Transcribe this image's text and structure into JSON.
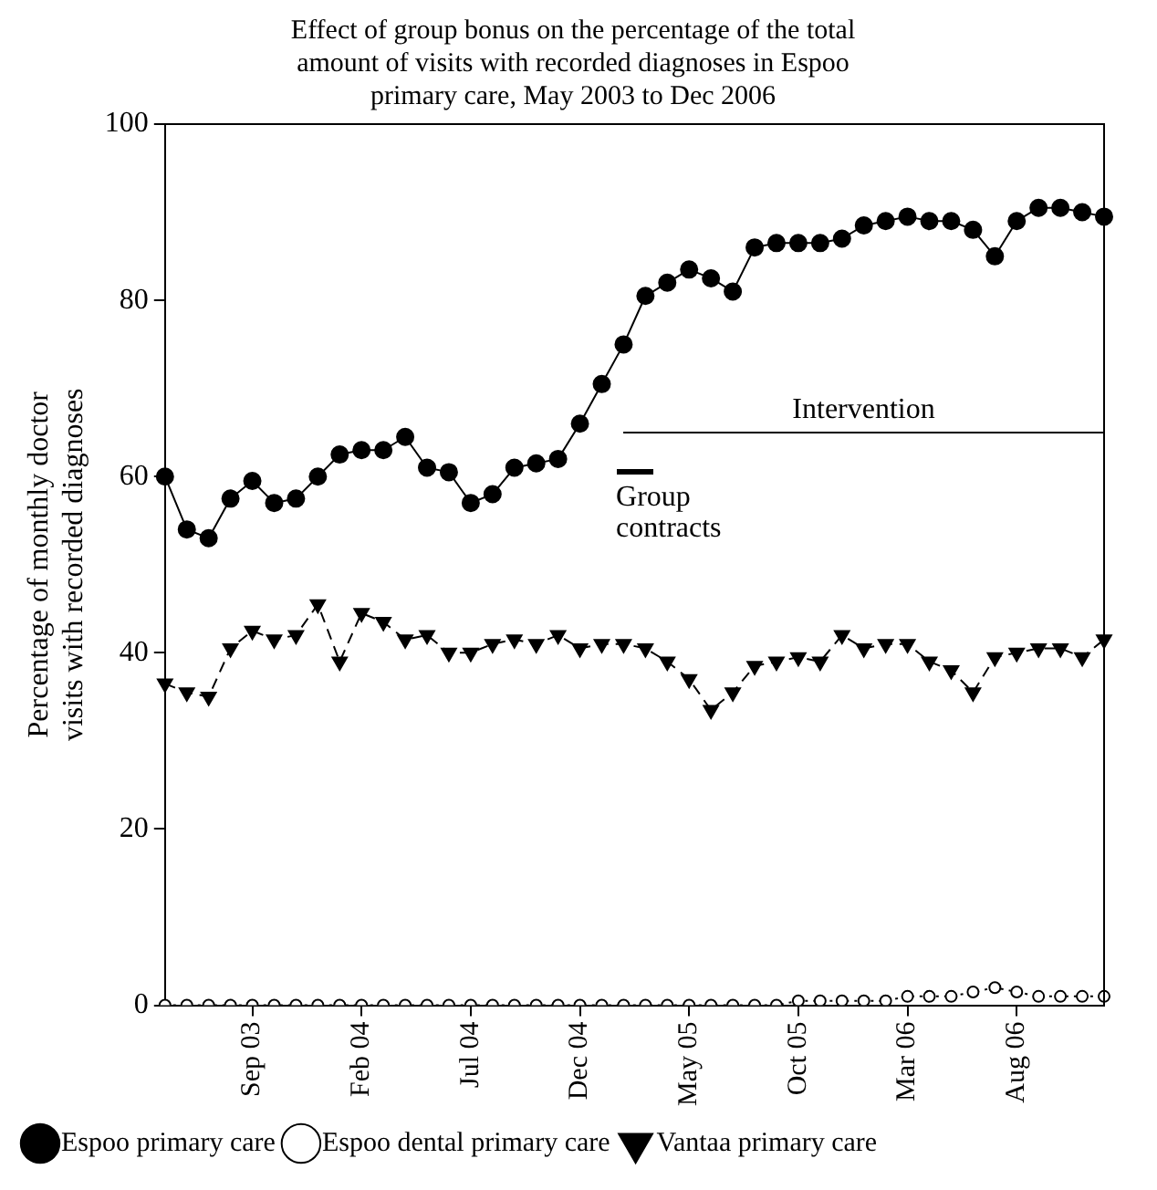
{
  "chart_data": {
    "type": "line",
    "title": "Effect of group bonus on the percentage of the total amount of visits with recorded diagnoses in Espoo primary care, May 2003 to Dec 2006",
    "ylabel": "Percentage of monthly doctor visits with recorded diagnoses",
    "categories": [
      null,
      null,
      null,
      null,
      "Sep 03",
      null,
      null,
      null,
      null,
      "Feb 04",
      null,
      null,
      null,
      null,
      "Jul 04",
      null,
      null,
      null,
      null,
      "Dec 04",
      null,
      null,
      null,
      null,
      "May 05",
      null,
      null,
      null,
      null,
      "Oct 05",
      null,
      null,
      null,
      null,
      "Mar 06",
      null,
      null,
      null,
      null,
      "Aug 06",
      null,
      null,
      null,
      null
    ],
    "ylim": [
      0,
      100
    ],
    "yticks": [
      0,
      20,
      40,
      60,
      80,
      100
    ],
    "grid": false,
    "legend": "bottom",
    "series": [
      {
        "name": "Espoo primary care",
        "color": "#000000",
        "marker": "circle",
        "line_style": "solid",
        "values": [
          60,
          54,
          53,
          57.5,
          59.5,
          57,
          57.5,
          60,
          62.5,
          63,
          63,
          64.5,
          61,
          60.5,
          57,
          58,
          61,
          61.5,
          62,
          66,
          70.5,
          75,
          80.5,
          82,
          83.5,
          82.5,
          81,
          86,
          86.5,
          86.5,
          86.5,
          87,
          88.5,
          89,
          89.5,
          89,
          89,
          88,
          85,
          89,
          90.5,
          90.5,
          90,
          89.5
        ]
      },
      {
        "name": "Espoo dental primary care",
        "color": "#000000",
        "marker": "circle",
        "line_style": "dotted",
        "values": [
          0,
          0,
          0,
          0,
          0,
          0,
          0,
          0,
          0,
          0,
          0,
          0,
          0,
          0,
          0,
          0,
          0,
          0,
          0,
          0,
          0,
          0,
          0,
          0,
          0,
          0,
          0,
          0,
          0,
          0.5,
          0.5,
          0.5,
          0.5,
          0.5,
          1,
          1,
          1,
          1.5,
          2,
          1.5,
          1,
          1,
          1,
          1
        ]
      },
      {
        "name": "Vantaa primary care",
        "color": "#000000",
        "marker": "triangle",
        "line_style": "dashed",
        "values": [
          36.5,
          35.5,
          35,
          40.5,
          42.5,
          41.5,
          42,
          45.5,
          39,
          44.5,
          43.5,
          41.5,
          42,
          40,
          40,
          41,
          41.5,
          41,
          42,
          40.5,
          41,
          41,
          40.5,
          39,
          37,
          33.5,
          35.5,
          38.5,
          39,
          39.5,
          39,
          42,
          40.5,
          41,
          41,
          39,
          38,
          35.5,
          39.5,
          40,
          40.5,
          40.5,
          39.5,
          41.5
        ]
      }
    ],
    "ref_lines": [
      {
        "axis": "y",
        "value": 65,
        "label": "Intervention",
        "color": "#000000",
        "line_style": "solid"
      }
    ],
    "annotations": [
      "Group contracts"
    ]
  }
}
